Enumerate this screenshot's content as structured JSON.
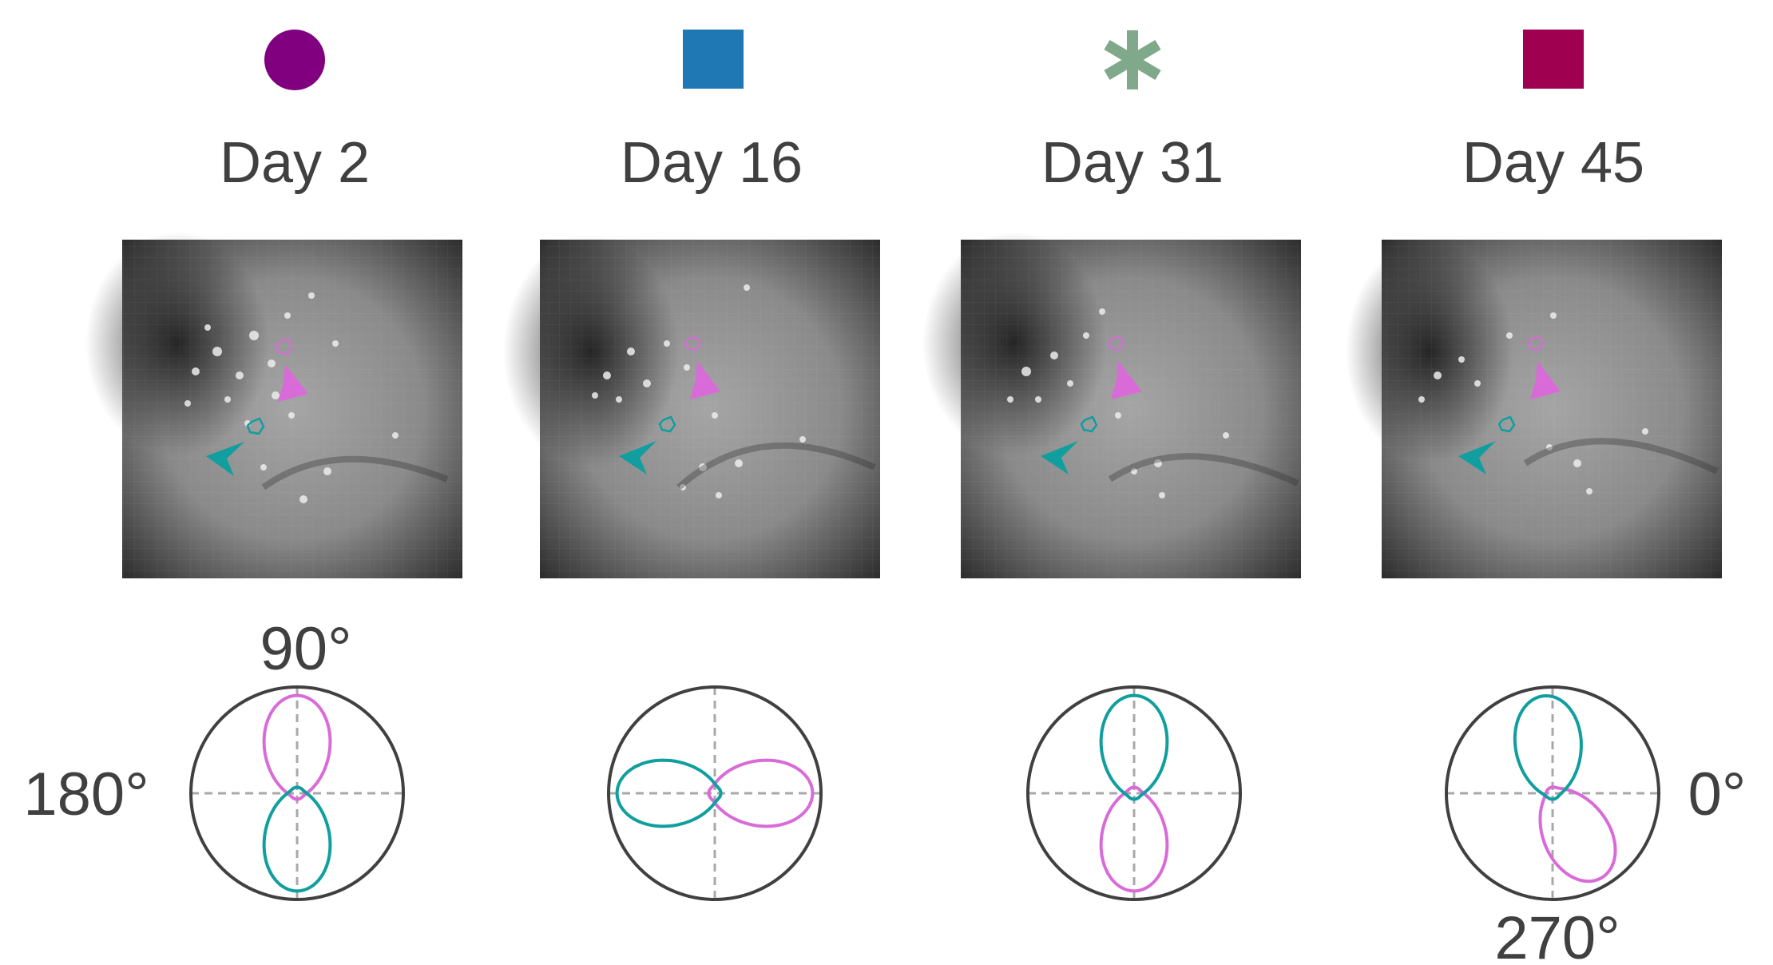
{
  "panels": [
    {
      "title": "Day 2",
      "marker": "circle",
      "marker_color": "#800080"
    },
    {
      "title": "Day 16",
      "marker": "square",
      "marker_color": "#1f78b4"
    },
    {
      "title": "Day 31",
      "marker": "asterisk",
      "marker_color": "#7fa98a"
    },
    {
      "title": "Day 45",
      "marker": "square",
      "marker_color": "#a00050"
    }
  ],
  "angle_labels": {
    "deg90": "90°",
    "deg180": "180°",
    "deg0": "0°",
    "deg270": "270°"
  },
  "colors": {
    "neuron_a": "#d96bd9",
    "neuron_b": "#109e9e",
    "axis_circle": "#404040",
    "crosshair": "#a8a8a8",
    "text": "#404040"
  },
  "tuning": [
    {
      "magenta_pref_deg": 90,
      "teal_pref_deg": 270
    },
    {
      "magenta_pref_deg": 0,
      "teal_pref_deg": 180
    },
    {
      "magenta_pref_deg": 270,
      "teal_pref_deg": 90
    },
    {
      "magenta_pref_deg": 300,
      "teal_pref_deg": 95
    }
  ]
}
